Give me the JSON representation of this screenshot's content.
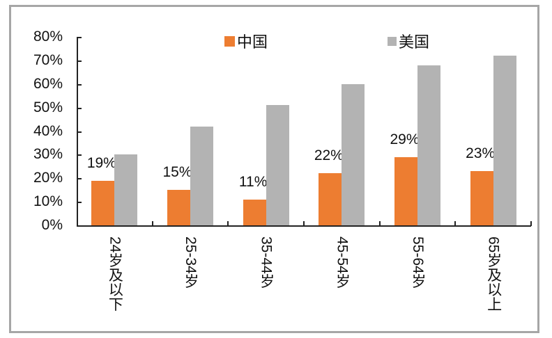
{
  "chart_data": {
    "type": "bar",
    "title": "",
    "xlabel": "",
    "ylabel": "",
    "ylim": [
      0,
      80
    ],
    "yticks": [
      "0%",
      "10%",
      "20%",
      "30%",
      "40%",
      "50%",
      "60%",
      "70%",
      "80%"
    ],
    "grid": false,
    "legend_position": "top",
    "categories": [
      "24岁及以下",
      "25-34岁",
      "35-44岁",
      "45-54岁",
      "55-64岁",
      "65岁及以上"
    ],
    "series": [
      {
        "name": "中国",
        "color": "#ed7d31",
        "values": [
          19,
          15,
          11,
          22,
          29,
          23
        ],
        "data_labels": [
          "19%",
          "15%",
          "11%",
          "22%",
          "29%",
          "23%"
        ]
      },
      {
        "name": "美国",
        "color": "#b3b3b3",
        "values": [
          30,
          42,
          51,
          60,
          68,
          72
        ]
      }
    ]
  },
  "legend": {
    "china": "中国",
    "usa": "美国"
  }
}
